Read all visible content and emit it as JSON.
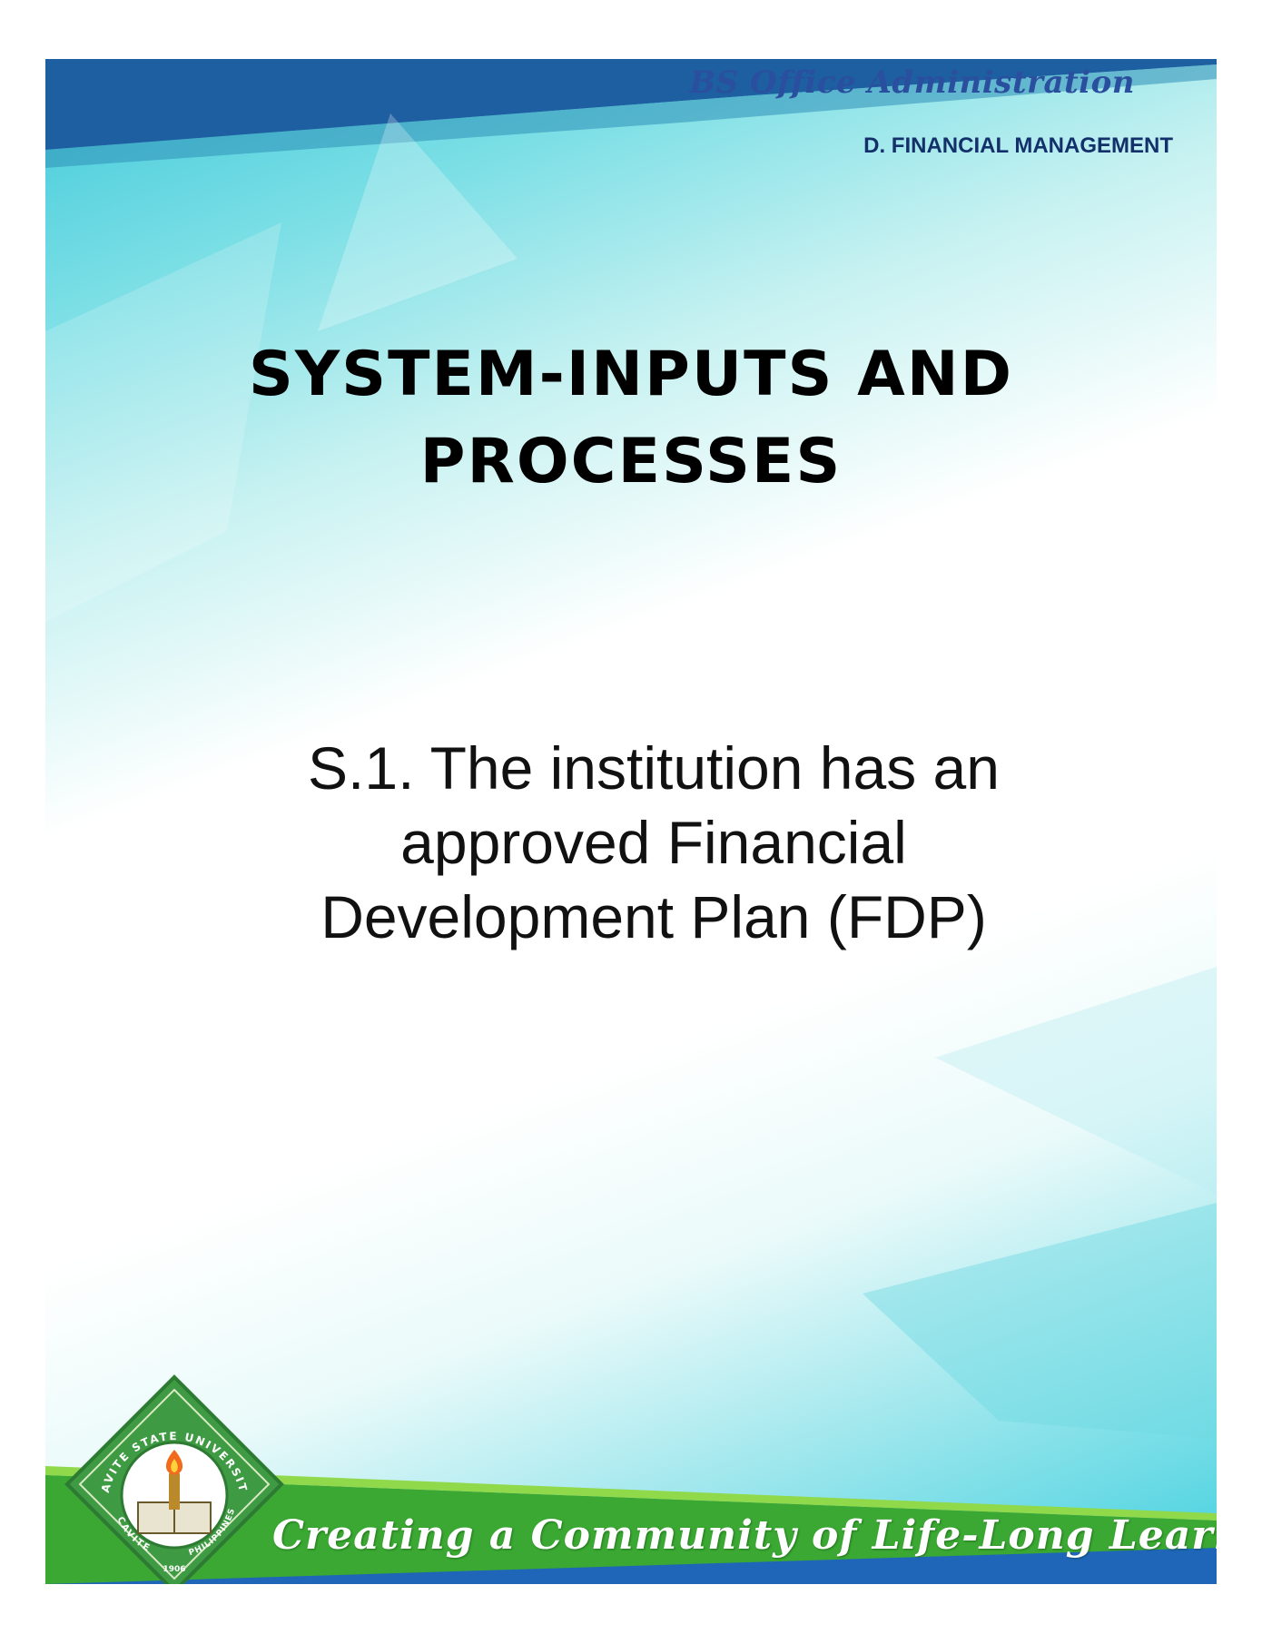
{
  "header": {
    "program": "BS Office Administration",
    "section": "D. FINANCIAL MANAGEMENT"
  },
  "title_lines": [
    "SYSTEM-INPUTS AND",
    "PROCESSES"
  ],
  "standard_lines": [
    "S.1. The institution has an",
    "approved Financial",
    "Development Plan (FDP)"
  ],
  "footer": {
    "slogan": "Creating a Community of Life-Long Learners"
  },
  "seal": {
    "top_text": "CAVITE STATE UNIVERSITY",
    "left_text": "CAVITE",
    "right_text": "PHILIPPINES",
    "year": "1906"
  },
  "colors": {
    "header_band": "#1d5fa0",
    "program_text": "#2a4f9e",
    "section_text": "#13306b",
    "footer_green": "#3aa832",
    "footer_blue": "#1f66b8",
    "seal_green": "#3f9b43"
  }
}
